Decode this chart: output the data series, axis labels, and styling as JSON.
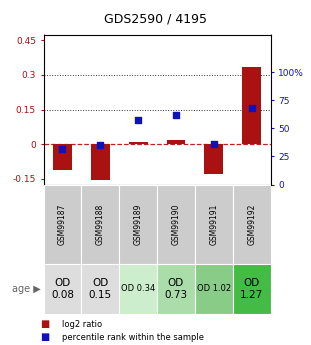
{
  "title": "GDS2590 / 4195",
  "samples": [
    "GSM99187",
    "GSM99188",
    "GSM99189",
    "GSM99190",
    "GSM99191",
    "GSM99192"
  ],
  "log2_ratios": [
    -0.11,
    -0.155,
    0.01,
    0.02,
    -0.13,
    0.335
  ],
  "percentile_ranks": [
    32,
    35,
    57,
    62,
    36,
    68
  ],
  "ylim_left": [
    -0.175,
    0.475
  ],
  "ylim_right": [
    0,
    133.33
  ],
  "yticks_left": [
    -0.15,
    0.0,
    0.15,
    0.3,
    0.45
  ],
  "ytick_labels_left": [
    "-0.15",
    "0",
    "0.15",
    "0.3",
    "0.45"
  ],
  "yticks_right": [
    0,
    25,
    50,
    75,
    100
  ],
  "ytick_labels_right": [
    "0",
    "25",
    "50",
    "75",
    "100%"
  ],
  "bar_color": "#aa1111",
  "dot_color": "#1111bb",
  "hline_color": "#bb2222",
  "dotted_line_color": "#333333",
  "age_values": [
    "OD\n0.08",
    "OD\n0.15",
    "OD 0.34",
    "OD\n0.73",
    "OD 1.02",
    "OD\n1.27"
  ],
  "age_bg_colors": [
    "#dddddd",
    "#dddddd",
    "#cceecc",
    "#aaddaa",
    "#88cc88",
    "#44bb44"
  ],
  "age_font_sizes": [
    7.5,
    7.5,
    6.0,
    7.5,
    6.0,
    7.5
  ],
  "legend_items": [
    {
      "color": "#aa1111",
      "label": "log2 ratio"
    },
    {
      "color": "#1111bb",
      "label": "percentile rank within the sample"
    }
  ]
}
